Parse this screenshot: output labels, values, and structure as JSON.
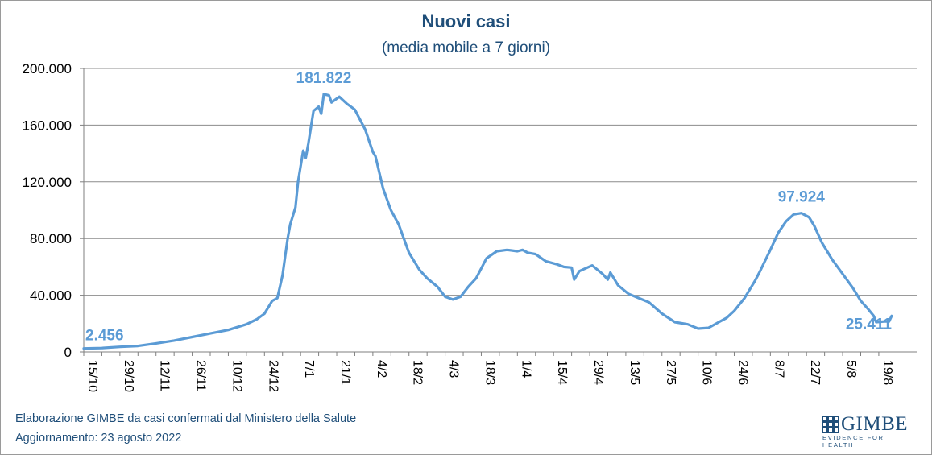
{
  "chart_data": {
    "type": "line",
    "title": "Nuovi casi",
    "subtitle": "(media mobile a 7 giorni)",
    "ylim": [
      0,
      200000
    ],
    "yticks": [
      0,
      40000,
      80000,
      120000,
      160000,
      200000
    ],
    "ytick_labels": [
      "0",
      "40.000",
      "80.000",
      "120.000",
      "160.000",
      "200.000"
    ],
    "grid": true,
    "x_dates": [
      "2021-10-15",
      "2021-10-29",
      "2021-11-12",
      "2021-11-26",
      "2021-12-10",
      "2021-12-24",
      "2022-01-07",
      "2022-01-21",
      "2022-02-04",
      "2022-02-18",
      "2022-03-04",
      "2022-03-18",
      "2022-04-01",
      "2022-04-15",
      "2022-04-29",
      "2022-05-13",
      "2022-05-27",
      "2022-06-10",
      "2022-06-24",
      "2022-07-08",
      "2022-07-22",
      "2022-08-05",
      "2022-08-19"
    ],
    "xtick_labels": [
      "15/10",
      "29/10",
      "12/11",
      "26/11",
      "10/12",
      "24/12",
      "7/1",
      "21/1",
      "4/2",
      "18/2",
      "4/3",
      "18/3",
      "1/4",
      "15/4",
      "29/4",
      "13/5",
      "27/5",
      "10/6",
      "24/6",
      "8/7",
      "22/7",
      "5/8",
      "19/8"
    ],
    "series": [
      {
        "color": "#5b9bd5",
        "points": [
          [
            "2021-10-15",
            2456
          ],
          [
            "2021-10-22",
            2700
          ],
          [
            "2021-10-29",
            3600
          ],
          [
            "2021-11-05",
            4200
          ],
          [
            "2021-11-12",
            6000
          ],
          [
            "2021-11-19",
            8000
          ],
          [
            "2021-11-26",
            10500
          ],
          [
            "2021-12-03",
            13000
          ],
          [
            "2021-12-10",
            15500
          ],
          [
            "2021-12-17",
            19500
          ],
          [
            "2021-12-21",
            23000
          ],
          [
            "2021-12-24",
            27000
          ],
          [
            "2021-12-27",
            36000
          ],
          [
            "2021-12-29",
            38000
          ],
          [
            "2021-12-31",
            54000
          ],
          [
            "2022-01-02",
            80000
          ],
          [
            "2022-01-03",
            90000
          ],
          [
            "2022-01-05",
            102000
          ],
          [
            "2022-01-06",
            120000
          ],
          [
            "2022-01-08",
            142000
          ],
          [
            "2022-01-09",
            137000
          ],
          [
            "2022-01-10",
            147000
          ],
          [
            "2022-01-12",
            170000
          ],
          [
            "2022-01-14",
            173000
          ],
          [
            "2022-01-15",
            168000
          ],
          [
            "2022-01-16",
            181822
          ],
          [
            "2022-01-18",
            181000
          ],
          [
            "2022-01-19",
            176000
          ],
          [
            "2022-01-22",
            180000
          ],
          [
            "2022-01-25",
            175000
          ],
          [
            "2022-01-28",
            171000
          ],
          [
            "2022-02-01",
            157000
          ],
          [
            "2022-02-04",
            141000
          ],
          [
            "2022-02-05",
            138000
          ],
          [
            "2022-02-08",
            115000
          ],
          [
            "2022-02-11",
            100000
          ],
          [
            "2022-02-14",
            90000
          ],
          [
            "2022-02-18",
            70000
          ],
          [
            "2022-02-22",
            58000
          ],
          [
            "2022-02-25",
            52000
          ],
          [
            "2022-03-01",
            46000
          ],
          [
            "2022-03-04",
            39000
          ],
          [
            "2022-03-07",
            37000
          ],
          [
            "2022-03-10",
            39000
          ],
          [
            "2022-03-13",
            46000
          ],
          [
            "2022-03-16",
            52000
          ],
          [
            "2022-03-20",
            66000
          ],
          [
            "2022-03-24",
            71000
          ],
          [
            "2022-03-28",
            72000
          ],
          [
            "2022-04-01",
            71000
          ],
          [
            "2022-04-03",
            72000
          ],
          [
            "2022-04-05",
            70000
          ],
          [
            "2022-04-08",
            69000
          ],
          [
            "2022-04-12",
            64000
          ],
          [
            "2022-04-16",
            62000
          ],
          [
            "2022-04-19",
            60000
          ],
          [
            "2022-04-22",
            59500
          ],
          [
            "2022-04-23",
            51000
          ],
          [
            "2022-04-25",
            57000
          ],
          [
            "2022-04-30",
            61000
          ],
          [
            "2022-05-04",
            55000
          ],
          [
            "2022-05-06",
            51000
          ],
          [
            "2022-05-07",
            56000
          ],
          [
            "2022-05-10",
            47000
          ],
          [
            "2022-05-14",
            41000
          ],
          [
            "2022-05-18",
            38000
          ],
          [
            "2022-05-22",
            35000
          ],
          [
            "2022-05-27",
            27000
          ],
          [
            "2022-06-01",
            21000
          ],
          [
            "2022-06-06",
            19500
          ],
          [
            "2022-06-10",
            16500
          ],
          [
            "2022-06-14",
            17000
          ],
          [
            "2022-06-18",
            21000
          ],
          [
            "2022-06-21",
            24000
          ],
          [
            "2022-06-24",
            29000
          ],
          [
            "2022-06-28",
            38000
          ],
          [
            "2022-07-02",
            50000
          ],
          [
            "2022-07-04",
            57000
          ],
          [
            "2022-07-08",
            72000
          ],
          [
            "2022-07-11",
            84000
          ],
          [
            "2022-07-14",
            92000
          ],
          [
            "2022-07-17",
            97000
          ],
          [
            "2022-07-20",
            97924
          ],
          [
            "2022-07-23",
            95000
          ],
          [
            "2022-07-25",
            89000
          ],
          [
            "2022-07-28",
            77000
          ],
          [
            "2022-08-01",
            65000
          ],
          [
            "2022-08-05",
            55000
          ],
          [
            "2022-08-09",
            45000
          ],
          [
            "2022-08-12",
            36000
          ],
          [
            "2022-08-15",
            30000
          ],
          [
            "2022-08-17",
            25500
          ],
          [
            "2022-08-18",
            21000
          ],
          [
            "2022-08-21",
            21500
          ],
          [
            "2022-08-23",
            21500
          ],
          [
            "2022-08-24",
            25411
          ]
        ]
      }
    ],
    "annotations": [
      {
        "text": "2.456",
        "date": "2021-10-15",
        "value": 2456,
        "anchor": "start"
      },
      {
        "text": "181.822",
        "date": "2022-01-16",
        "value": 181822,
        "anchor": "middle"
      },
      {
        "text": "97.924",
        "date": "2022-07-20",
        "value": 97924,
        "anchor": "middle"
      },
      {
        "text": "25.411",
        "date": "2022-08-24",
        "value": 25411,
        "anchor": "end"
      }
    ]
  },
  "footer": {
    "line1": "Elaborazione GIMBE da casi confermati dal Ministero della Salute",
    "line2": "Aggiornamento:  23 agosto 2022"
  },
  "logo": {
    "name": "GIMBE",
    "tagline": "EVIDENCE FOR HEALTH"
  },
  "colors": {
    "line": "#5b9bd5",
    "text": "#1f4e79",
    "grid": "#8c8c8c"
  }
}
